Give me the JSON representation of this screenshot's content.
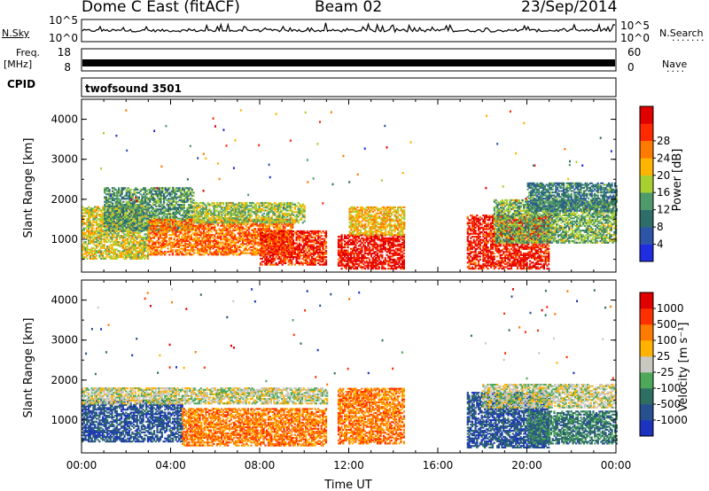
{
  "header": {
    "station": "Dome C East (fitACF)",
    "beam": "Beam 02",
    "date": "23/Sep/2014"
  },
  "left_labels": {
    "nsky": "N.Sky",
    "freq": "Freq.",
    "freq_unit": "[MHz]",
    "cpid": "CPID"
  },
  "right_labels": {
    "nsearch": "N.Search",
    "nave": "Nave"
  },
  "sky_panel": {
    "y_ticks": [
      "10^5",
      "10^0"
    ],
    "right_ticks": [
      "10^5",
      "10^0"
    ]
  },
  "freq_panel": {
    "y_ticks": [
      "18",
      "8"
    ],
    "right_ticks": [
      "60",
      "0"
    ]
  },
  "cpid_text": "twofsound 3501",
  "chart_data": [
    {
      "type": "heatmap",
      "panel": "power",
      "ylabel": "Slant Range [km]",
      "xlabel": "",
      "ylim": [
        180,
        4500
      ],
      "xlim": [
        0,
        24
      ],
      "y_ticks": [
        "1000",
        "2000",
        "3000",
        "4000"
      ],
      "x_ticks": [],
      "colorbar": {
        "label": "Power [dB]",
        "ticks": [
          "4",
          "8",
          "12",
          "16",
          "20",
          "24",
          "28"
        ],
        "colors": [
          "#1f2ce0",
          "#2c55a6",
          "#2f6e68",
          "#4e9a6b",
          "#a8cf32",
          "#ffb400",
          "#ff7a00",
          "#ff2a00",
          "#e00000"
        ]
      },
      "bands": [
        {
          "t0": 0.0,
          "t1": 3.0,
          "r0": 500,
          "r1": 1800,
          "v": 18
        },
        {
          "t0": 1.0,
          "t1": 5.0,
          "r0": 1200,
          "r1": 2300,
          "v": 12
        },
        {
          "t0": 3.0,
          "t1": 9.5,
          "r0": 600,
          "r1": 1500,
          "v": 24
        },
        {
          "t0": 5.0,
          "t1": 10.0,
          "r0": 1400,
          "r1": 1900,
          "v": 16
        },
        {
          "t0": 8.0,
          "t1": 11.0,
          "r0": 350,
          "r1": 1200,
          "v": 28
        },
        {
          "t0": 11.5,
          "t1": 14.5,
          "r0": 250,
          "r1": 1100,
          "v": 30
        },
        {
          "t0": 12.0,
          "t1": 14.5,
          "r0": 1100,
          "r1": 1800,
          "v": 20
        },
        {
          "t0": 17.3,
          "t1": 21.0,
          "r0": 250,
          "r1": 1600,
          "v": 29
        },
        {
          "t0": 18.5,
          "t1": 24.0,
          "r0": 900,
          "r1": 2000,
          "v": 14
        },
        {
          "t0": 20.0,
          "t1": 24.0,
          "r0": 1700,
          "r1": 2400,
          "v": 10
        }
      ]
    },
    {
      "type": "heatmap",
      "panel": "velocity",
      "ylabel": "Slant Range [km]",
      "xlabel": "Time UT",
      "ylim": [
        180,
        4500
      ],
      "xlim": [
        0,
        24
      ],
      "y_ticks": [
        "1000",
        "2000",
        "3000",
        "4000"
      ],
      "x_ticks": [
        "00:00",
        "04:00",
        "08:00",
        "12:00",
        "16:00",
        "20:00",
        "00:00"
      ],
      "colorbar": {
        "label": "Velocity [m s⁻¹]",
        "ticks": [
          "1000",
          "500",
          "100",
          "25",
          "-25",
          "-100",
          "-500",
          "-1000"
        ],
        "colors": [
          "#1c33c0",
          "#27508e",
          "#2f6f62",
          "#4ea85a",
          "#c8c8c0",
          "#ffb200",
          "#ff7a00",
          "#ff3000",
          "#e00000"
        ]
      },
      "bands": [
        {
          "t0": 0.0,
          "t1": 4.5,
          "r0": 450,
          "r1": 1500,
          "v": 1
        },
        {
          "t0": 0.0,
          "t1": 11.0,
          "r0": 1400,
          "r1": 1800,
          "v": 4
        },
        {
          "t0": 4.5,
          "t1": 11.0,
          "r0": 350,
          "r1": 1300,
          "v": 6
        },
        {
          "t0": 11.5,
          "t1": 14.5,
          "r0": 400,
          "r1": 1800,
          "v": 6
        },
        {
          "t0": 17.3,
          "t1": 21.0,
          "r0": 300,
          "r1": 1700,
          "v": 1
        },
        {
          "t0": 18.0,
          "t1": 24.0,
          "r0": 1300,
          "r1": 1900,
          "v": 4
        },
        {
          "t0": 20.0,
          "t1": 24.0,
          "r0": 400,
          "r1": 1200,
          "v": 2
        }
      ]
    }
  ]
}
